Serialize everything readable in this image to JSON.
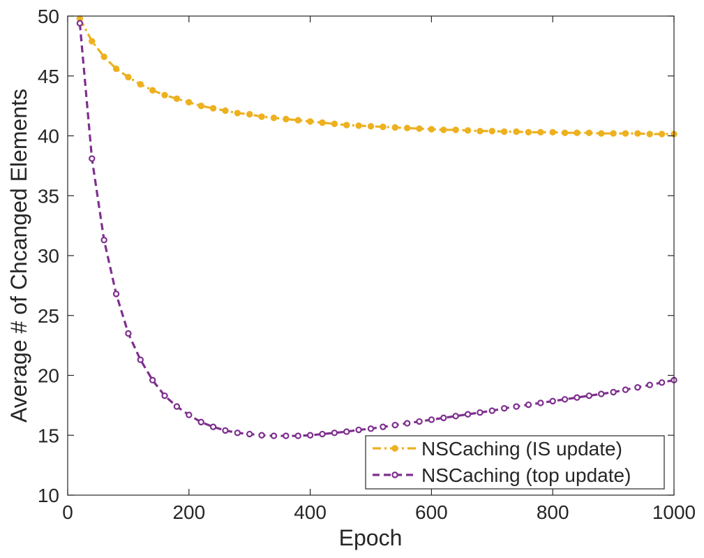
{
  "chart_data": {
    "type": "line",
    "title": "",
    "xlabel": "Epoch",
    "ylabel": "Average # of Chcanged Elements",
    "xlim": [
      0,
      1000
    ],
    "ylim": [
      10,
      50
    ],
    "xticks": [
      0,
      200,
      400,
      600,
      800,
      1000
    ],
    "yticks": [
      10,
      15,
      20,
      25,
      30,
      35,
      40,
      45,
      50
    ],
    "xtick_labels": [
      "0",
      "200",
      "400",
      "600",
      "800",
      "1000"
    ],
    "ytick_labels": [
      "10",
      "15",
      "20",
      "25",
      "30",
      "35",
      "40",
      "45",
      "50"
    ],
    "grid": false,
    "legend_position": "bottom-right",
    "x": [
      20,
      40,
      60,
      80,
      100,
      120,
      140,
      160,
      180,
      200,
      220,
      240,
      260,
      280,
      300,
      320,
      340,
      360,
      380,
      400,
      420,
      440,
      460,
      480,
      500,
      520,
      540,
      560,
      580,
      600,
      620,
      640,
      660,
      680,
      700,
      720,
      740,
      760,
      780,
      800,
      820,
      840,
      860,
      880,
      900,
      920,
      940,
      960,
      980,
      1000
    ],
    "series": [
      {
        "name": "NSCaching (IS update)",
        "color": "#EDB120",
        "line_style": "dash-dot",
        "marker": "filled-circle",
        "values": [
          49.8,
          47.9,
          46.6,
          45.6,
          44.9,
          44.3,
          43.8,
          43.4,
          43.1,
          42.8,
          42.5,
          42.3,
          42.1,
          41.9,
          41.8,
          41.6,
          41.5,
          41.4,
          41.3,
          41.2,
          41.1,
          41.0,
          40.9,
          40.85,
          40.8,
          40.75,
          40.7,
          40.65,
          40.6,
          40.55,
          40.5,
          40.5,
          40.45,
          40.4,
          40.4,
          40.35,
          40.35,
          40.3,
          40.3,
          40.3,
          40.25,
          40.25,
          40.25,
          40.2,
          40.2,
          40.2,
          40.2,
          40.15,
          40.15,
          40.15
        ]
      },
      {
        "name": "NSCaching (top update)",
        "color": "#7E2F8E",
        "line_style": "dashed",
        "marker": "open-circle",
        "values": [
          49.4,
          38.1,
          31.3,
          26.8,
          23.5,
          21.3,
          19.6,
          18.3,
          17.4,
          16.7,
          16.1,
          15.7,
          15.4,
          15.2,
          15.1,
          15.0,
          14.95,
          14.95,
          14.95,
          15.0,
          15.1,
          15.2,
          15.3,
          15.45,
          15.55,
          15.7,
          15.85,
          16.0,
          16.15,
          16.3,
          16.45,
          16.6,
          16.75,
          16.9,
          17.05,
          17.25,
          17.4,
          17.55,
          17.7,
          17.85,
          18.0,
          18.15,
          18.3,
          18.45,
          18.6,
          18.8,
          19.0,
          19.2,
          19.4,
          19.6
        ]
      }
    ]
  }
}
